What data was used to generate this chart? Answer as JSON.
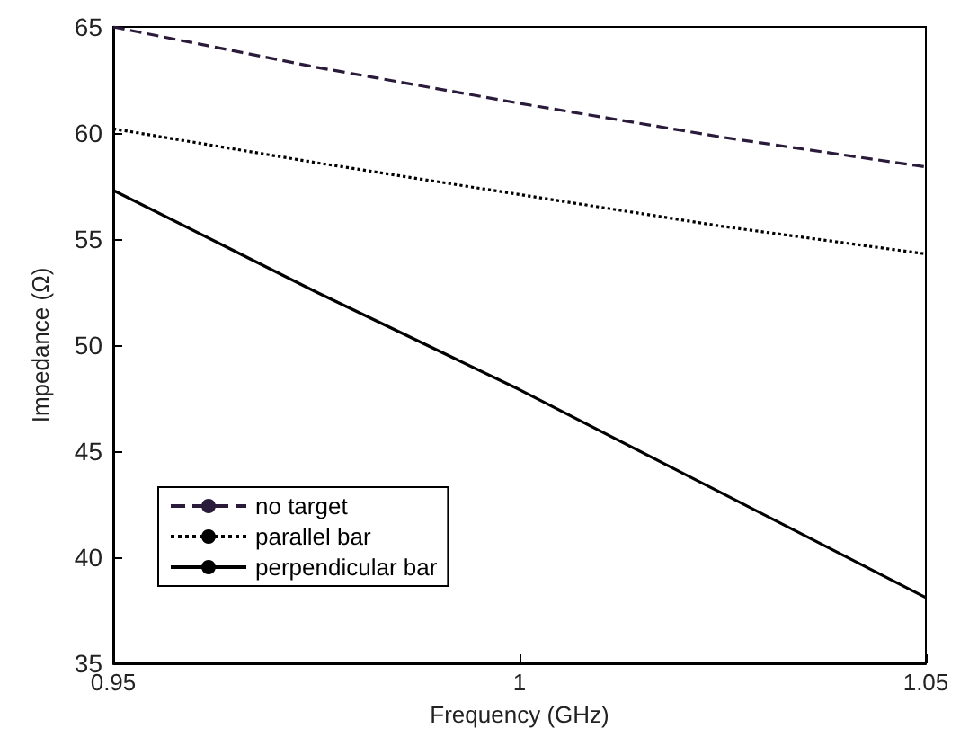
{
  "chart_data": {
    "type": "line",
    "xlabel": "Frequency (GHz)",
    "ylabel": "Impedance (Ω)",
    "x": [
      0.95,
      0.975,
      1.0,
      1.025,
      1.05
    ],
    "series": [
      {
        "name": "no target",
        "color": "#2b1b3b",
        "line_style": "dashed",
        "values": [
          65,
          63.1,
          61.4,
          59.8,
          58.4
        ]
      },
      {
        "name": "parallel bar",
        "color": "#000000",
        "line_style": "dotted",
        "values": [
          60.2,
          58.6,
          57.1,
          55.6,
          54.3
        ]
      },
      {
        "name": "perpendicular bar",
        "color": "#000000",
        "line_style": "solid",
        "values": [
          57.3,
          52.5,
          47.9,
          43.0,
          38.1
        ]
      }
    ],
    "xlim": [
      0.95,
      1.05
    ],
    "xticks": [
      0.95,
      1,
      1.05
    ],
    "ylim": [
      35,
      65
    ],
    "yticks": [
      35,
      40,
      45,
      50,
      55,
      60,
      65
    ],
    "grid": false,
    "legend": "bottom left",
    "marker": "none"
  }
}
